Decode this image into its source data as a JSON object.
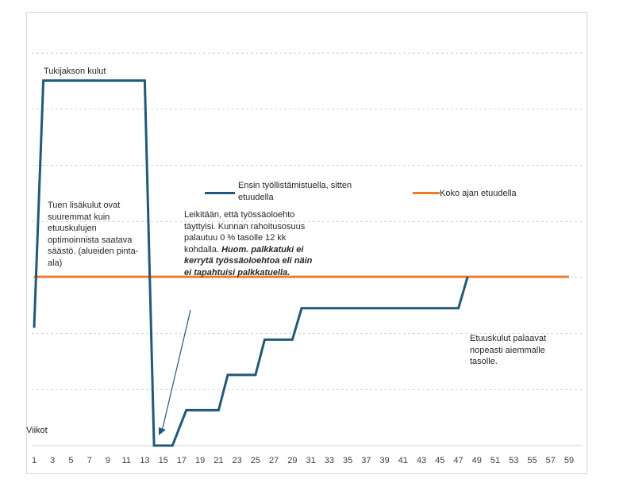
{
  "chart_data": {
    "type": "line",
    "title": "",
    "ylabel": "Tukijakson kulut",
    "xlabel": "Viikot",
    "x_ticks": [
      "1",
      "3",
      "5",
      "7",
      "9",
      "11",
      "13",
      "15",
      "17",
      "19",
      "21",
      "23",
      "25",
      "27",
      "29",
      "31",
      "33",
      "35",
      "37",
      "39",
      "41",
      "43",
      "45",
      "47",
      "49",
      "51",
      "53",
      "55",
      "57",
      "59"
    ],
    "xlim": [
      1,
      59
    ],
    "ylim": [
      0,
      10
    ],
    "grid": "horizontal dashed",
    "series": [
      {
        "name": "Ensin työllistämistuella, sitten etuudella",
        "color": "#1f5a7a",
        "points": [
          [
            1,
            3
          ],
          [
            2,
            9.3
          ],
          [
            13,
            9.3
          ],
          [
            14,
            0
          ],
          [
            16,
            0
          ],
          [
            17.5,
            0.9
          ],
          [
            21,
            0.9
          ],
          [
            22,
            1.8
          ],
          [
            25,
            1.8
          ],
          [
            26,
            2.7
          ],
          [
            29,
            2.7
          ],
          [
            30,
            3.5
          ],
          [
            33,
            3.5
          ],
          [
            47,
            3.5
          ],
          [
            48,
            4.3
          ]
        ]
      },
      {
        "name": "Koko ajan etuudella",
        "color": "#f07a2e",
        "points": [
          [
            1,
            4.3
          ],
          [
            59,
            4.3
          ]
        ]
      }
    ],
    "annotations": {
      "tuen_lisakulut": "Tuen lisäkulut ovat suuremmat kuin etuuskulujen optimoinnista saatava säästö. (alueiden pinta-ala)",
      "leikitaan_plain": "Leikitään, että työssäoloehto täyttyisi. Kunnan rahoitusosuus palautuu 0 % tasolle 12 kk kohdalla.",
      "leikitaan_bold": "Huom. palkkatuki ei kerrytä työssäoloehtoa eli näin ei tapahtuisi palkkatuella.",
      "etuuskulut": "Etuuskulut palaavat nopeasti aiemmalle tasolle."
    }
  }
}
